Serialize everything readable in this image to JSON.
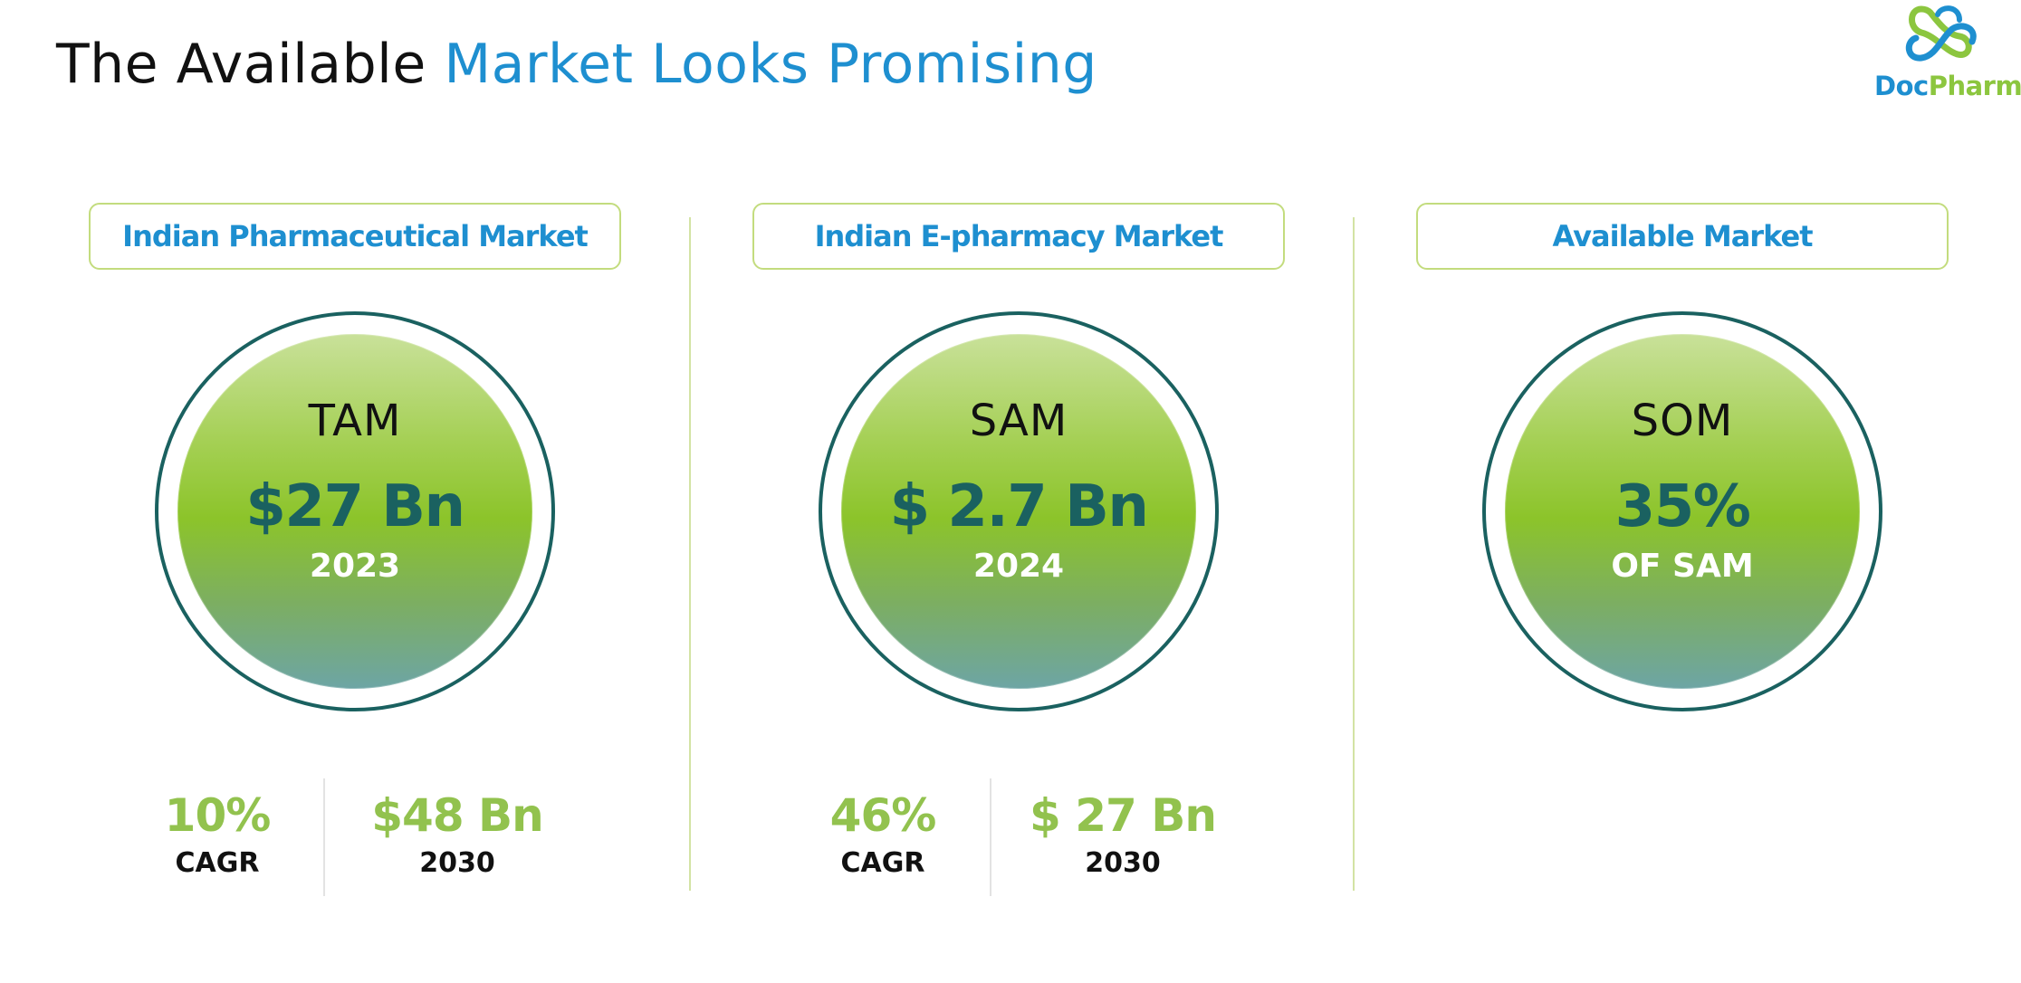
{
  "title": {
    "part1": "The Available ",
    "part2": "Market Looks Promising"
  },
  "logo": {
    "icon": "cross-swirl-icon",
    "text_part1": "Doc",
    "text_part2": "Pharma"
  },
  "colors": {
    "accent_blue": "#1e8fd0",
    "accent_green": "#8cc63f",
    "dark_teal": "#1a6160"
  },
  "panels": [
    {
      "header": "Indian Pharmaceutical Market",
      "label": "TAM",
      "value": "$27 Bn",
      "sub": "2023",
      "stats": [
        {
          "value": "10%",
          "label": "CAGR"
        },
        {
          "value": "$48 Bn",
          "label": "2030"
        }
      ]
    },
    {
      "header": "Indian E-pharmacy Market",
      "label": "SAM",
      "value": "$ 2.7 Bn",
      "sub": "2024",
      "stats": [
        {
          "value": "46%",
          "label": "CAGR"
        },
        {
          "value": "$ 27 Bn",
          "label": "2030"
        }
      ]
    },
    {
      "header": "Available Market",
      "label": "SOM",
      "value": "35%",
      "sub": "OF SAM"
    }
  ]
}
